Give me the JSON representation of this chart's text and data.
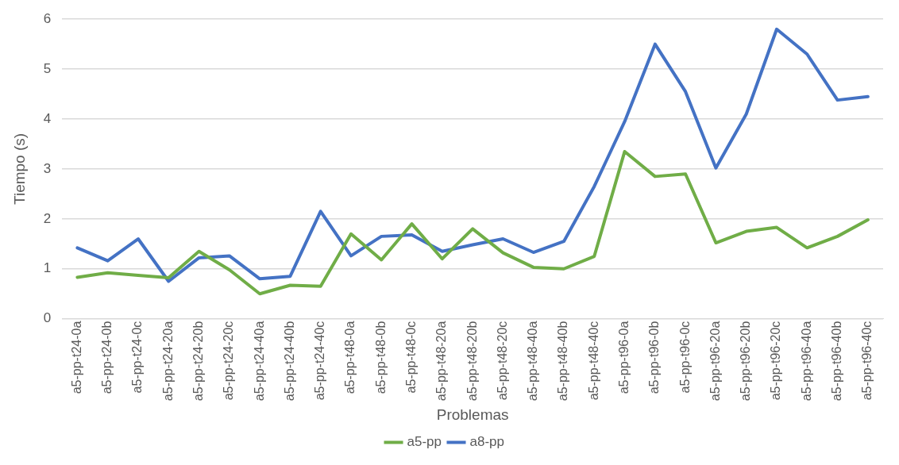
{
  "chart_data": {
    "type": "line",
    "xlabel": "Problemas",
    "ylabel": "Tiempo (s)",
    "categories": [
      "a5-pp-t24-0a",
      "a5-pp-t24-0b",
      "a5-pp-t24-0c",
      "a5-pp-t24-20a",
      "a5-pp-t24-20b",
      "a5-pp-t24-20c",
      "a5-pp-t24-40a",
      "a5-pp-t24-40b",
      "a5-pp-t24-40c",
      "a5-pp-t48-0a",
      "a5-pp-t48-0b",
      "a5-pp-t48-0c",
      "a5-pp-t48-20a",
      "a5-pp-t48-20b",
      "a5-pp-t48-20c",
      "a5-pp-t48-40a",
      "a5-pp-t48-40b",
      "a5-pp-t48-40c",
      "a5-pp-t96-0a",
      "a5-pp-t96-0b",
      "a5-pp-t96-0c",
      "a5-pp-t96-20a",
      "a5-pp-t96-20b",
      "a5-pp-t96-20c",
      "a5-pp-t96-40a",
      "a5-pp-t96-40b",
      "a5-pp-t96-40c"
    ],
    "series": [
      {
        "name": "a5-pp",
        "color": "#70ad47",
        "values": [
          0.83,
          0.92,
          0.87,
          0.82,
          1.35,
          0.98,
          0.5,
          0.67,
          0.65,
          1.7,
          1.18,
          1.9,
          1.2,
          1.8,
          1.32,
          1.03,
          1.0,
          1.25,
          3.35,
          2.85,
          2.9,
          1.52,
          1.75,
          1.83,
          1.42,
          1.65,
          1.98
        ]
      },
      {
        "name": "a8-pp",
        "color": "#4472c4",
        "values": [
          1.42,
          1.16,
          1.6,
          0.75,
          1.22,
          1.26,
          0.8,
          0.85,
          2.15,
          1.26,
          1.65,
          1.68,
          1.35,
          1.48,
          1.6,
          1.33,
          1.55,
          2.65,
          3.95,
          5.5,
          4.55,
          3.02,
          4.1,
          5.8,
          5.3,
          4.38,
          4.45
        ]
      }
    ],
    "ylim": [
      0,
      6
    ],
    "yticks": [
      0,
      1,
      2,
      3,
      4,
      5,
      6
    ],
    "grid": "y",
    "legend": "bottom",
    "marker": "none",
    "line_style": "solid"
  }
}
